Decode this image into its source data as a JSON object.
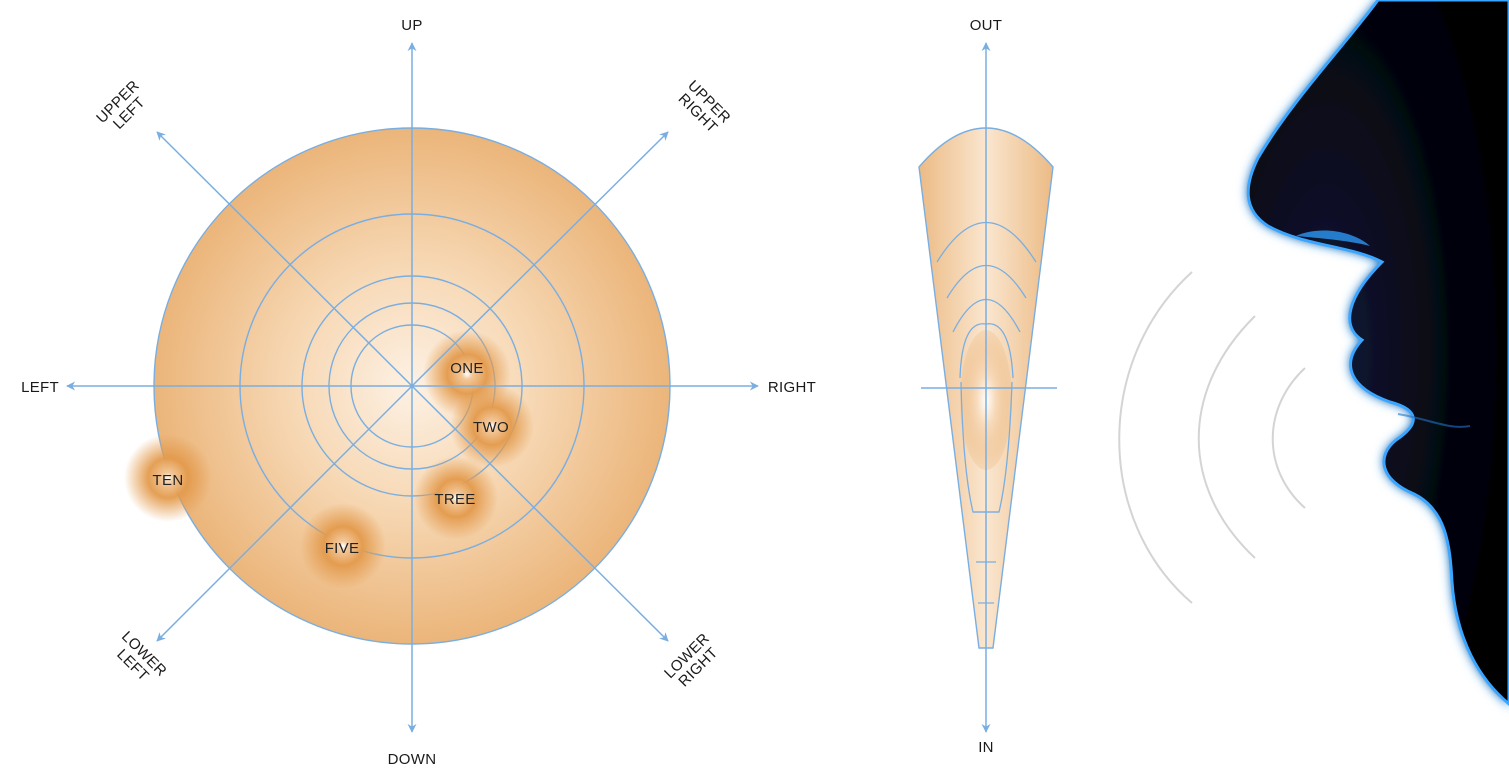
{
  "polar_diagram": {
    "directions": {
      "up": "UP",
      "down": "DOWN",
      "left": "LEFT",
      "right": "RIGHT",
      "upper_left": [
        "UPPER",
        "LEFT"
      ],
      "upper_right": [
        "UPPER",
        "RIGHT"
      ],
      "lower_left": [
        "LOWER",
        "LEFT"
      ],
      "lower_right": [
        "LOWER",
        "RIGHT"
      ]
    },
    "sounds": [
      "ONE",
      "TWO",
      "TREE",
      "FIVE",
      "TEN"
    ]
  },
  "depth_diagram": {
    "out_label": "OUT",
    "in_label": "IN"
  },
  "colors": {
    "axis": "#7aaee0",
    "fill_outer": "#e9b47a",
    "fill_inner": "#fbe9d6",
    "sound_blob": "#e39a4c",
    "waves": "#d4d4d4",
    "face_dark": "#05060e",
    "face_glow": "#3aa6ff"
  },
  "icons": [
    "human-face-profile-icon",
    "sound-waves-icon"
  ]
}
